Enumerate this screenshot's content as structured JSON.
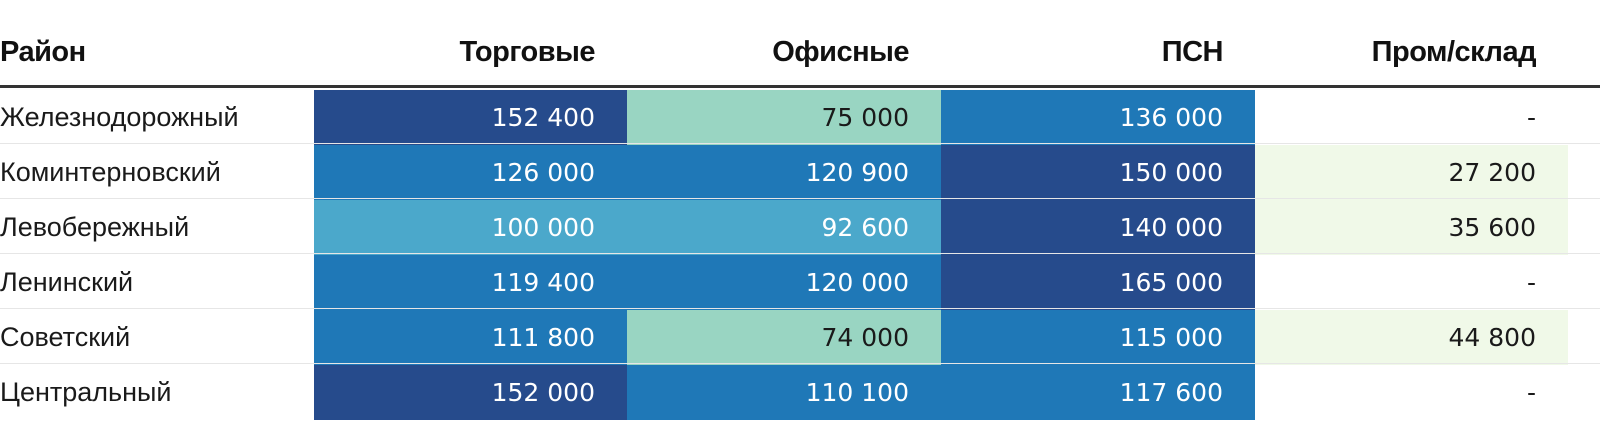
{
  "chart_data": {
    "type": "table",
    "columns": [
      "Район",
      "Торговые",
      "Офисные",
      "ПСН",
      "Пром/склад"
    ],
    "rows": [
      {
        "name": "Железнодорожный",
        "cells": [
          {
            "text": "152 400",
            "value": 152400,
            "bg": "#264b8c",
            "fg": "#ffffff"
          },
          {
            "text": "75 000",
            "value": 75000,
            "bg": "#99d5c2",
            "fg": "#1a1a1a"
          },
          {
            "text": "136 000",
            "value": 136000,
            "bg": "#1f78b7",
            "fg": "#ffffff"
          },
          {
            "text": "-",
            "value": null,
            "bg": "#ffffff",
            "fg": "#1a1a1a"
          }
        ]
      },
      {
        "name": "Коминтерновский",
        "cells": [
          {
            "text": "126 000",
            "value": 126000,
            "bg": "#1f78b7",
            "fg": "#ffffff"
          },
          {
            "text": "120 900",
            "value": 120900,
            "bg": "#1f78b7",
            "fg": "#ffffff"
          },
          {
            "text": "150 000",
            "value": 150000,
            "bg": "#264b8c",
            "fg": "#ffffff"
          },
          {
            "text": "27 200",
            "value": 27200,
            "bg": "#f0f9e8",
            "fg": "#1a1a1a"
          }
        ]
      },
      {
        "name": "Левобережный",
        "cells": [
          {
            "text": "100 000",
            "value": 100000,
            "bg": "#4ba8cb",
            "fg": "#ffffff"
          },
          {
            "text": "92 600",
            "value": 92600,
            "bg": "#4ba8cb",
            "fg": "#ffffff"
          },
          {
            "text": "140 000",
            "value": 140000,
            "bg": "#264b8c",
            "fg": "#ffffff"
          },
          {
            "text": "35 600",
            "value": 35600,
            "bg": "#f0f9e8",
            "fg": "#1a1a1a"
          }
        ]
      },
      {
        "name": "Ленинский",
        "cells": [
          {
            "text": "119 400",
            "value": 119400,
            "bg": "#1f78b7",
            "fg": "#ffffff"
          },
          {
            "text": "120 000",
            "value": 120000,
            "bg": "#1f78b7",
            "fg": "#ffffff"
          },
          {
            "text": "165 000",
            "value": 165000,
            "bg": "#264b8c",
            "fg": "#ffffff"
          },
          {
            "text": "-",
            "value": null,
            "bg": "#ffffff",
            "fg": "#1a1a1a"
          }
        ]
      },
      {
        "name": "Советский",
        "cells": [
          {
            "text": "111 800",
            "value": 111800,
            "bg": "#1f78b7",
            "fg": "#ffffff"
          },
          {
            "text": "74 000",
            "value": 74000,
            "bg": "#99d5c2",
            "fg": "#1a1a1a"
          },
          {
            "text": "115 000",
            "value": 115000,
            "bg": "#1f78b7",
            "fg": "#ffffff"
          },
          {
            "text": "44 800",
            "value": 44800,
            "bg": "#f0f9e8",
            "fg": "#1a1a1a"
          }
        ]
      },
      {
        "name": "Центральный",
        "cells": [
          {
            "text": "152 000",
            "value": 152000,
            "bg": "#264b8c",
            "fg": "#ffffff"
          },
          {
            "text": "110 100",
            "value": 110100,
            "bg": "#1f78b7",
            "fg": "#ffffff"
          },
          {
            "text": "117 600",
            "value": 117600,
            "bg": "#1f78b7",
            "fg": "#ffffff"
          },
          {
            "text": "-",
            "value": null,
            "bg": "#ffffff",
            "fg": "#1a1a1a"
          }
        ]
      }
    ]
  }
}
